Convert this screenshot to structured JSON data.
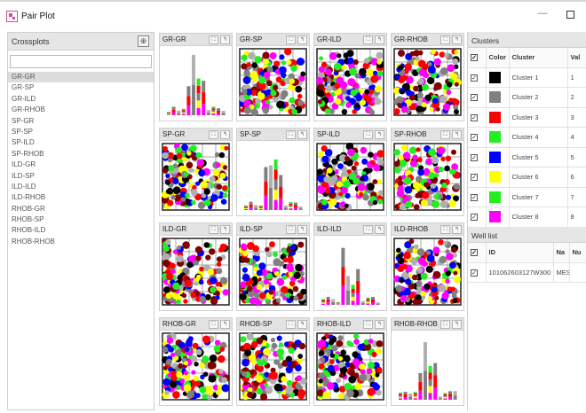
{
  "window": {
    "title": "Pair Plot",
    "minimize_glyph": "—",
    "maximize_glyph": ""
  },
  "colors": {
    "black": "#000000",
    "gray": "#808080",
    "red": "#ff0000",
    "green": "#22ee22",
    "blue": "#0000ff",
    "yellow": "#ffff00",
    "magenta": "#ff00ff",
    "maroon": "#800000",
    "lightgray": "#b0b0b0"
  },
  "crossplots": {
    "title": "Crossplots",
    "search_value": "",
    "items": [
      "GR-GR",
      "GR-SP",
      "GR-ILD",
      "GR-RHOB",
      "SP-GR",
      "SP-SP",
      "SP-ILD",
      "SP-RHOB",
      "ILD-GR",
      "ILD-SP",
      "ILD-ILD",
      "ILD-RHOB",
      "RHOB-GR",
      "RHOB-SP",
      "RHOB-ILD",
      "RHOB-RHOB"
    ],
    "selected_index": 0
  },
  "plots": [
    {
      "title": "GR-GR",
      "kind": "hist"
    },
    {
      "title": "GR-SP",
      "kind": "scatter"
    },
    {
      "title": "GR-ILD",
      "kind": "scatter"
    },
    {
      "title": "GR-RHOB",
      "kind": "scatter"
    },
    {
      "title": "SP-GR",
      "kind": "scatter"
    },
    {
      "title": "SP-SP",
      "kind": "hist"
    },
    {
      "title": "SP-ILD",
      "kind": "scatter"
    },
    {
      "title": "SP-RHOB",
      "kind": "scatter"
    },
    {
      "title": "ILD-GR",
      "kind": "scatter"
    },
    {
      "title": "ILD-SP",
      "kind": "scatter"
    },
    {
      "title": "ILD-ILD",
      "kind": "hist"
    },
    {
      "title": "ILD-RHOB",
      "kind": "scatter"
    },
    {
      "title": "RHOB-GR",
      "kind": "scatter"
    },
    {
      "title": "RHOB-SP",
      "kind": "scatter"
    },
    {
      "title": "RHOB-ILD",
      "kind": "scatter"
    },
    {
      "title": "RHOB-RHOB",
      "kind": "hist"
    }
  ],
  "cell_buttons": {
    "expand": "⛶",
    "reset": "↰"
  },
  "clusters": {
    "title": "Clusters",
    "columns": [
      "",
      "Color",
      "Cluster",
      "Val"
    ],
    "header_checked": "✓",
    "rows": [
      {
        "checked": "✓",
        "color": "#000000",
        "name": "Cluster 1",
        "value": "1"
      },
      {
        "checked": "✓",
        "color": "#808080",
        "name": "Cluster 2",
        "value": "2"
      },
      {
        "checked": "✓",
        "color": "#ff0000",
        "name": "Cluster 3",
        "value": "3"
      },
      {
        "checked": "✓",
        "color": "#22ee22",
        "name": "Cluster 4",
        "value": "4"
      },
      {
        "checked": "✓",
        "color": "#0000ff",
        "name": "Cluster 5",
        "value": "5"
      },
      {
        "checked": "✓",
        "color": "#ffff00",
        "name": "Cluster 6",
        "value": "6"
      },
      {
        "checked": "✓",
        "color": "#22ee22",
        "name": "Cluster 7",
        "value": "7"
      },
      {
        "checked": "✓",
        "color": "#ff00ff",
        "name": "Cluster 8",
        "value": "8"
      }
    ]
  },
  "wells": {
    "title": "Well list",
    "columns": [
      "",
      "ID",
      "Na",
      "Nu"
    ],
    "header_checked": "✓",
    "rows": [
      {
        "checked": "✓",
        "id": "101062603127W300",
        "na": "MES",
        "nu": ""
      }
    ]
  }
}
